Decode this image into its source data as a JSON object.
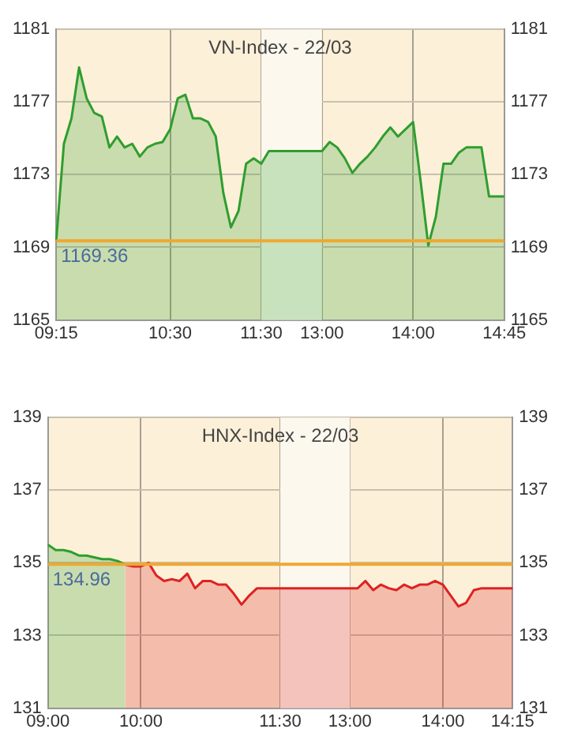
{
  "chart_data": [
    {
      "type": "area",
      "title": "VN-Index - 22/03",
      "categories": [
        "09:15",
        null,
        null,
        null,
        null,
        null,
        null,
        null,
        null,
        null,
        null,
        null,
        null,
        null,
        null,
        "10:30",
        null,
        null,
        null,
        null,
        null,
        null,
        null,
        null,
        null,
        null,
        null,
        "11:30",
        null,
        null,
        null,
        null,
        null,
        null,
        null,
        "13:00",
        null,
        null,
        null,
        null,
        null,
        null,
        null,
        null,
        null,
        null,
        null,
        "14:00",
        null,
        null,
        null,
        null,
        null,
        null,
        null,
        null,
        null,
        null,
        null,
        "14:45"
      ],
      "series": [
        {
          "color": "#2e9e2e",
          "values": [
            1169.4,
            1174.7,
            1176.1,
            1178.9,
            1177.2,
            1176.4,
            1176.2,
            1174.5,
            1175.1,
            1174.5,
            1174.7,
            1174.0,
            1174.5,
            1174.7,
            1174.8,
            1175.5,
            1177.2,
            1177.4,
            1176.1,
            1176.1,
            1175.9,
            1175.1,
            1172.0,
            1170.1,
            1171.0,
            1173.6,
            1173.9,
            1173.6,
            1174.3,
            1174.3,
            1174.3,
            1174.3,
            1174.3,
            1174.3,
            1174.3,
            1174.3,
            1174.8,
            1174.5,
            1173.9,
            1173.1,
            1173.6,
            1174.0,
            1174.5,
            1175.1,
            1175.6,
            1175.1,
            1175.5,
            1175.9,
            1172.6,
            1169.1,
            1170.7,
            1173.6,
            1173.6,
            1174.2,
            1174.5,
            1174.5,
            1174.5,
            1171.8,
            1171.8,
            1171.8
          ]
        }
      ],
      "ylim": [
        1165,
        1181
      ],
      "yticks": [
        1165,
        1169,
        1173,
        1177,
        1181
      ],
      "y2lim": [
        1165,
        1181
      ],
      "y2ticks": [
        1165,
        1169,
        1173,
        1177,
        1181
      ],
      "ref_lines": [
        {
          "axis": "y",
          "value": 1169.36,
          "label": "1169.36",
          "color": "#f0a830"
        }
      ],
      "bands": [
        {
          "axis": "x",
          "from": "11:30",
          "to": "13:00",
          "color": "#fdf8ee"
        }
      ],
      "grid": true,
      "marker": "none"
    },
    {
      "type": "area",
      "title": "HNX-Index - 22/03",
      "categories": [
        "09:00",
        null,
        null,
        null,
        null,
        null,
        null,
        null,
        null,
        null,
        null,
        null,
        "10:00",
        null,
        null,
        null,
        null,
        null,
        null,
        null,
        null,
        null,
        null,
        null,
        null,
        null,
        null,
        null,
        null,
        null,
        "11:30",
        null,
        null,
        null,
        null,
        null,
        null,
        null,
        null,
        "13:00",
        null,
        null,
        null,
        null,
        null,
        null,
        null,
        null,
        null,
        null,
        null,
        "14:00",
        null,
        null,
        null,
        null,
        null,
        null,
        null,
        null,
        "14:15"
      ],
      "series": [
        {
          "color": "#2e9e2e",
          "values": [
            135.5,
            135.35,
            135.35,
            135.3,
            135.2,
            135.2,
            135.15,
            135.1,
            135.1,
            135.05,
            134.95,
            null,
            null,
            null,
            null,
            null,
            null,
            null,
            null,
            null,
            null,
            null,
            null,
            null,
            null,
            null,
            null,
            null,
            null,
            null,
            null,
            null,
            null,
            null,
            null,
            null,
            null,
            null,
            null,
            null,
            null,
            null,
            null,
            null,
            null,
            null,
            null,
            null,
            null,
            null,
            null,
            null,
            null,
            null,
            null,
            null,
            null,
            null,
            null,
            null,
            null
          ]
        },
        {
          "color": "#dd2222",
          "values": [
            null,
            null,
            null,
            null,
            null,
            null,
            null,
            null,
            null,
            null,
            134.95,
            134.9,
            134.9,
            135.0,
            134.65,
            134.5,
            134.55,
            134.5,
            134.7,
            134.3,
            134.5,
            134.5,
            134.4,
            134.4,
            134.15,
            133.85,
            134.1,
            134.3,
            134.3,
            134.3,
            134.3,
            134.3,
            134.3,
            134.3,
            134.3,
            134.3,
            134.3,
            134.3,
            134.3,
            134.3,
            134.3,
            134.5,
            134.25,
            134.4,
            134.3,
            134.25,
            134.4,
            134.3,
            134.4,
            134.4,
            134.5,
            134.4,
            134.1,
            133.8,
            133.9,
            134.25,
            134.3,
            134.3,
            134.3,
            134.3,
            134.3
          ]
        }
      ],
      "ylim": [
        131,
        139
      ],
      "yticks": [
        131,
        133,
        135,
        137,
        139
      ],
      "y2lim": [
        131,
        139
      ],
      "y2ticks": [
        131,
        133,
        135,
        137,
        139
      ],
      "ref_lines": [
        {
          "axis": "y",
          "value": 134.96,
          "label": "134.96",
          "color": "#f0a830"
        }
      ],
      "bands": [
        {
          "axis": "x",
          "from": "11:30",
          "to": "13:00",
          "color": "#fdf8ee"
        }
      ],
      "grid": true,
      "marker": "none"
    }
  ]
}
